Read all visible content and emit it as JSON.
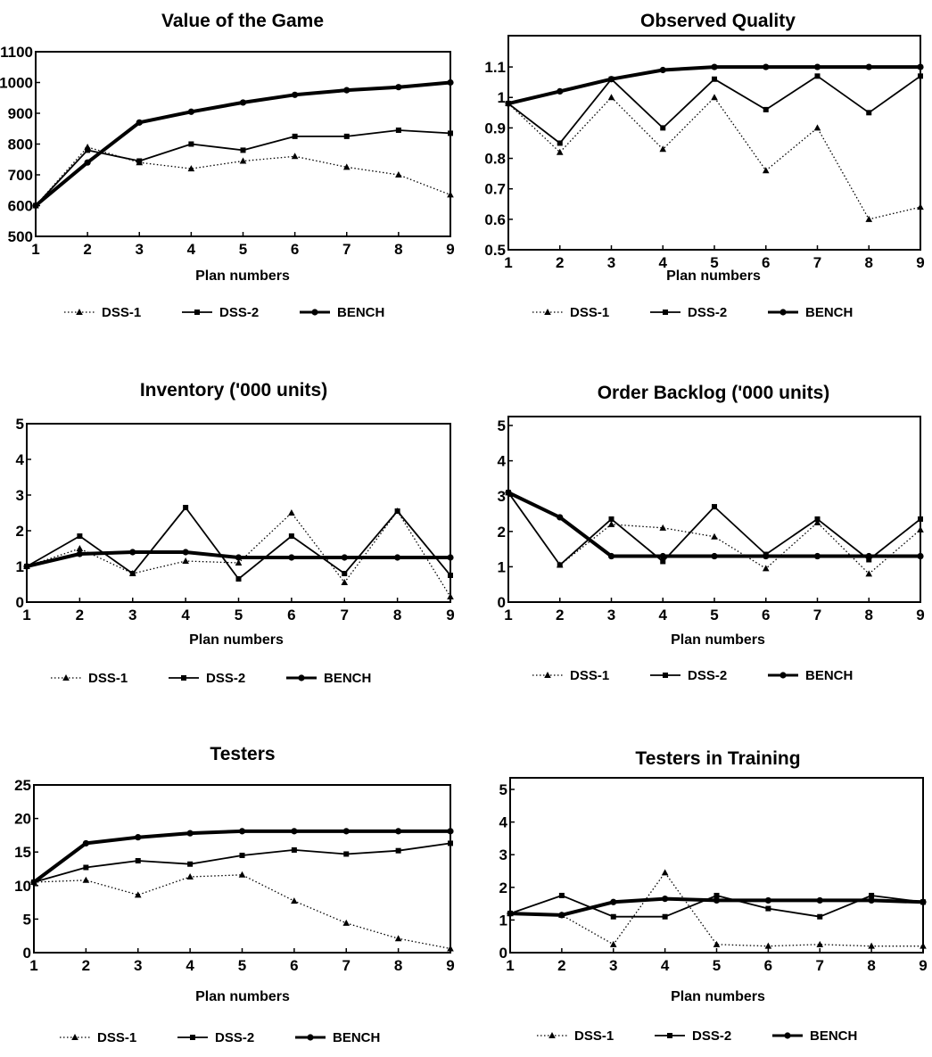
{
  "chart_data": [
    {
      "type": "line",
      "title": "Value of the Game",
      "xlabel": "Plan numbers",
      "ylabel": "",
      "x": [
        1,
        2,
        3,
        4,
        5,
        6,
        7,
        8,
        9
      ],
      "xticks": [
        "1",
        "2",
        "3",
        "4",
        "5",
        "6",
        "7",
        "8",
        "9"
      ],
      "ylim": [
        500,
        1100
      ],
      "yticks": [
        "500",
        "600",
        "700",
        "800",
        "900",
        "1000",
        "1100"
      ],
      "grid": false,
      "legend_position": "bottom",
      "series": [
        {
          "name": "DSS-1",
          "style": "dotted",
          "marker": "triangle",
          "values": [
            600,
            790,
            740,
            720,
            745,
            760,
            725,
            700,
            635
          ]
        },
        {
          "name": "DSS-2",
          "style": "solid",
          "marker": "square",
          "values": [
            600,
            780,
            745,
            800,
            780,
            825,
            825,
            845,
            835
          ]
        },
        {
          "name": "BENCH",
          "style": "thick",
          "marker": "circle",
          "values": [
            600,
            740,
            870,
            905,
            935,
            960,
            975,
            985,
            1000
          ]
        }
      ]
    },
    {
      "type": "line",
      "title": "Observed Quality",
      "xlabel": "Plan numbers",
      "ylabel": "",
      "x": [
        1,
        2,
        3,
        4,
        5,
        6,
        7,
        8,
        9
      ],
      "xticks": [
        "1",
        "2",
        "3",
        "4",
        "5",
        "6",
        "7",
        "8",
        "9"
      ],
      "ylim": [
        0.5,
        1.15
      ],
      "yticks": [
        "0.5",
        "0.6",
        "0.7",
        "0.8",
        "0.9",
        "1",
        "1.1"
      ],
      "grid": false,
      "legend_position": "bottom",
      "series": [
        {
          "name": "DSS-1",
          "style": "dotted",
          "marker": "triangle",
          "values": [
            0.98,
            0.82,
            1.0,
            0.83,
            1.0,
            0.76,
            0.9,
            0.6,
            0.64
          ]
        },
        {
          "name": "DSS-2",
          "style": "solid",
          "marker": "square",
          "values": [
            0.98,
            0.85,
            1.06,
            0.9,
            1.06,
            0.96,
            1.07,
            0.95,
            1.07
          ]
        },
        {
          "name": "BENCH",
          "style": "thick",
          "marker": "circle",
          "values": [
            0.98,
            1.02,
            1.06,
            1.09,
            1.1,
            1.1,
            1.1,
            1.1,
            1.1
          ]
        }
      ]
    },
    {
      "type": "line",
      "title": "Inventory ('000 units)",
      "xlabel": "Plan numbers",
      "ylabel": "",
      "x": [
        1,
        2,
        3,
        4,
        5,
        6,
        7,
        8,
        9
      ],
      "xticks": [
        "1",
        "2",
        "3",
        "4",
        "5",
        "6",
        "7",
        "8",
        "9"
      ],
      "ylim": [
        0,
        5
      ],
      "yticks": [
        "0",
        "1",
        "2",
        "3",
        "4",
        "5"
      ],
      "grid": false,
      "legend_position": "bottom",
      "series": [
        {
          "name": "DSS-1",
          "style": "dotted",
          "marker": "triangle",
          "values": [
            1.0,
            1.5,
            0.8,
            1.15,
            1.1,
            2.5,
            0.55,
            2.55,
            0.15
          ]
        },
        {
          "name": "DSS-2",
          "style": "solid",
          "marker": "square",
          "values": [
            1.0,
            1.85,
            0.8,
            2.65,
            0.65,
            1.85,
            0.8,
            2.55,
            0.75
          ]
        },
        {
          "name": "BENCH",
          "style": "thick",
          "marker": "circle",
          "values": [
            1.0,
            1.35,
            1.4,
            1.4,
            1.25,
            1.25,
            1.25,
            1.25,
            1.25
          ]
        }
      ]
    },
    {
      "type": "line",
      "title": "Order Backlog ('000 units)",
      "xlabel": "Plan numbers",
      "ylabel": "",
      "x": [
        1,
        2,
        3,
        4,
        5,
        6,
        7,
        8,
        9
      ],
      "xticks": [
        "1",
        "2",
        "3",
        "4",
        "5",
        "6",
        "7",
        "8",
        "9"
      ],
      "ylim": [
        0,
        5
      ],
      "yticks": [
        "0",
        "1",
        "2",
        "3",
        "4",
        "5"
      ],
      "grid": false,
      "legend_position": "bottom",
      "series": [
        {
          "name": "DSS-1",
          "style": "dotted",
          "marker": "triangle",
          "values": [
            3.1,
            1.05,
            2.2,
            2.1,
            1.85,
            0.95,
            2.25,
            0.8,
            2.05
          ]
        },
        {
          "name": "DSS-2",
          "style": "solid",
          "marker": "square",
          "values": [
            3.1,
            1.05,
            2.35,
            1.15,
            2.7,
            1.35,
            2.35,
            1.2,
            2.35
          ]
        },
        {
          "name": "BENCH",
          "style": "thick",
          "marker": "circle",
          "values": [
            3.1,
            2.4,
            1.3,
            1.3,
            1.3,
            1.3,
            1.3,
            1.3,
            1.3
          ]
        }
      ]
    },
    {
      "type": "line",
      "title": "Testers",
      "xlabel": "Plan numbers",
      "ylabel": "",
      "x": [
        1,
        2,
        3,
        4,
        5,
        6,
        7,
        8,
        9
      ],
      "xticks": [
        "1",
        "2",
        "3",
        "4",
        "5",
        "6",
        "7",
        "8",
        "9"
      ],
      "ylim": [
        0,
        25
      ],
      "yticks": [
        "0",
        "5",
        "10",
        "15",
        "20",
        "25"
      ],
      "grid": false,
      "legend_position": "bottom",
      "series": [
        {
          "name": "DSS-1",
          "style": "dotted",
          "marker": "triangle",
          "values": [
            10.5,
            10.8,
            8.6,
            11.3,
            11.6,
            7.7,
            4.4,
            2.1,
            0.6
          ]
        },
        {
          "name": "DSS-2",
          "style": "solid",
          "marker": "square",
          "values": [
            10.5,
            12.7,
            13.7,
            13.2,
            14.5,
            15.3,
            14.7,
            15.2,
            16.3
          ]
        },
        {
          "name": "BENCH",
          "style": "thick",
          "marker": "circle",
          "values": [
            10.5,
            16.3,
            17.2,
            17.8,
            18.1,
            18.1,
            18.1,
            18.1,
            18.1
          ]
        }
      ]
    },
    {
      "type": "line",
      "title": "Testers in Training",
      "xlabel": "Plan numbers",
      "ylabel": "",
      "x": [
        1,
        2,
        3,
        4,
        5,
        6,
        7,
        8,
        9
      ],
      "xticks": [
        "1",
        "2",
        "3",
        "4",
        "5",
        "6",
        "7",
        "8",
        "9"
      ],
      "ylim": [
        0,
        5
      ],
      "yticks": [
        "0",
        "1",
        "2",
        "3",
        "4",
        "5"
      ],
      "grid": false,
      "legend_position": "bottom",
      "series": [
        {
          "name": "DSS-1",
          "style": "dotted",
          "marker": "triangle",
          "values": [
            1.2,
            1.15,
            0.25,
            2.45,
            0.25,
            0.2,
            0.25,
            0.2,
            0.2
          ]
        },
        {
          "name": "DSS-2",
          "style": "solid",
          "marker": "square",
          "values": [
            1.2,
            1.75,
            1.1,
            1.1,
            1.75,
            1.35,
            1.1,
            1.75,
            1.55
          ]
        },
        {
          "name": "BENCH",
          "style": "thick",
          "marker": "circle",
          "values": [
            1.2,
            1.15,
            1.55,
            1.65,
            1.6,
            1.6,
            1.6,
            1.6,
            1.55
          ]
        }
      ]
    }
  ]
}
